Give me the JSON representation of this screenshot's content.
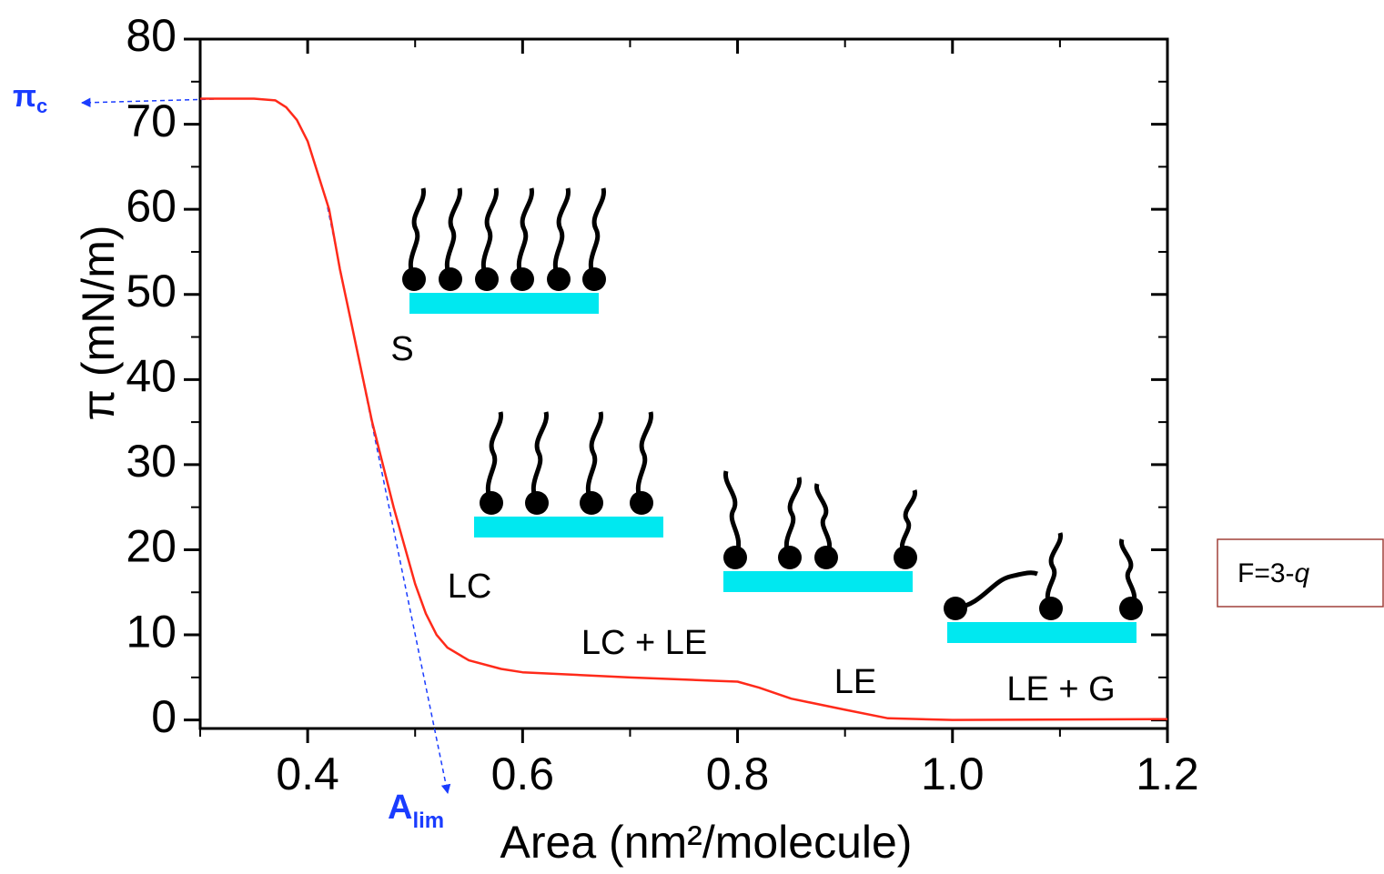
{
  "chart_data": {
    "type": "line",
    "x_label": "Area (nm²/molecule)",
    "y_label": "π (mN/m)",
    "x": [
      0.3,
      0.35,
      0.37,
      0.38,
      0.39,
      0.4,
      0.41,
      0.42,
      0.43,
      0.44,
      0.45,
      0.46,
      0.47,
      0.48,
      0.49,
      0.5,
      0.51,
      0.52,
      0.53,
      0.55,
      0.58,
      0.6,
      0.7,
      0.78,
      0.8,
      0.82,
      0.85,
      0.9,
      0.94,
      1.0,
      1.2
    ],
    "series": [
      {
        "color": "#ff2a1a",
        "values": [
          73,
          73,
          72.8,
          72,
          70.5,
          68,
          64,
          60,
          53,
          47,
          41,
          35,
          30,
          25,
          20.5,
          16,
          12.5,
          10,
          8.5,
          7,
          6,
          5.6,
          5,
          4.6,
          4.5,
          3.8,
          2.5,
          1.2,
          0.2,
          0,
          0.1
        ]
      }
    ],
    "xlim": [
      0.3,
      1.2
    ],
    "ylim": [
      -1,
      80
    ],
    "xticks": [
      {
        "value": 0.4,
        "label": "0.4"
      },
      {
        "value": 0.6,
        "label": "0.6"
      },
      {
        "value": 0.8,
        "label": "0.8"
      },
      {
        "value": 1.0,
        "label": "1.0"
      },
      {
        "value": 1.2,
        "label": "1.2"
      }
    ],
    "xminorticks": [
      0.3,
      0.5,
      0.7,
      0.9,
      1.1
    ],
    "yticks": [
      0,
      10,
      20,
      30,
      40,
      50,
      60,
      70,
      80
    ],
    "yminorticks": [
      5,
      15,
      25,
      35,
      45,
      55,
      65,
      75
    ],
    "phase_labels": [
      "S",
      "LC",
      "LC + LE",
      "LE",
      "LE + G"
    ],
    "pi_c": {
      "text": "π",
      "sub": "c"
    },
    "a_lim": {
      "text": "A",
      "sub": "lim"
    },
    "formula": {
      "text": "F=3-",
      "italic": "q"
    }
  }
}
